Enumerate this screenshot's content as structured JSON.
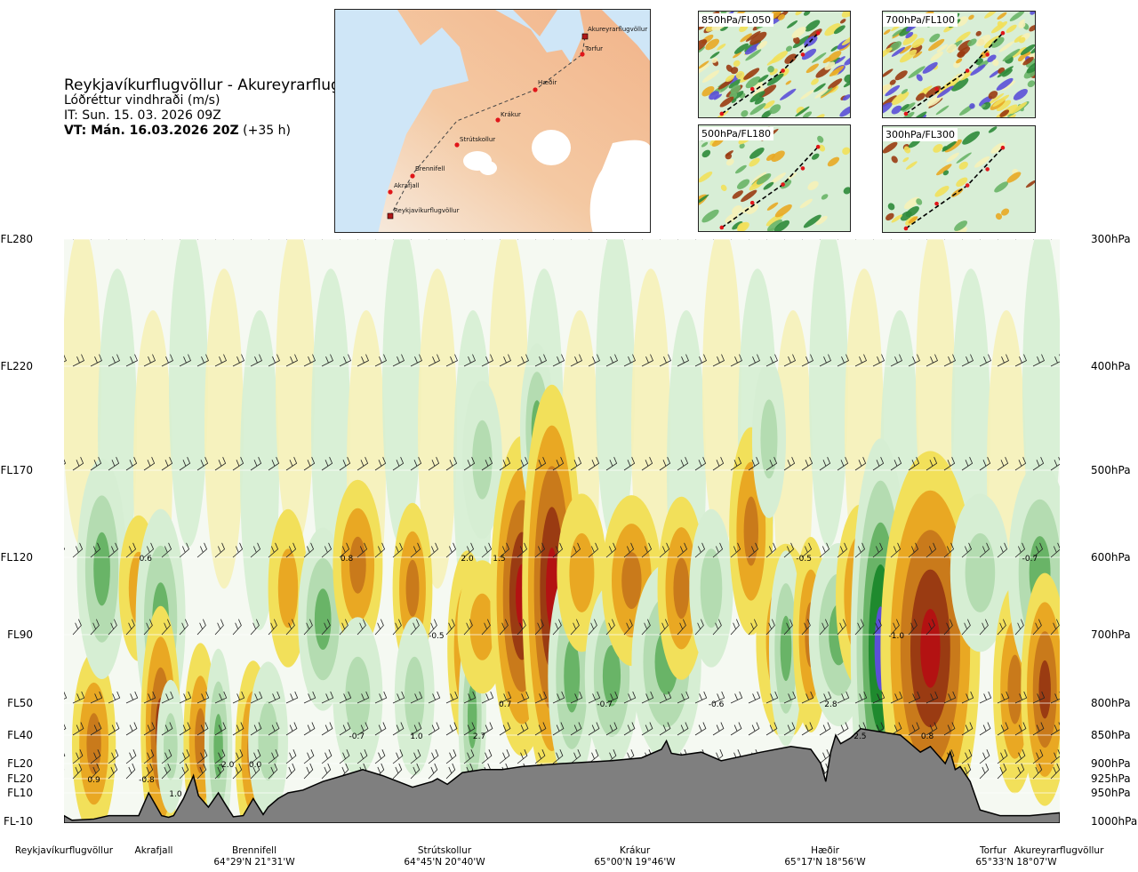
{
  "header": {
    "title": "Reykjavíkurflugvöllur - Akureyrarflugvöllur",
    "subtitle": "Lóðréttur vindhraði (m/s)",
    "issue_time": "IT: Sun. 15. 03. 2026 09Z",
    "valid_label": "VT: Mán. 16.03.2026 20Z",
    "lead_time": "(+35 h)"
  },
  "route_map": {
    "waypoints": [
      {
        "name": "Akureyrarflugvöllur"
      },
      {
        "name": "Torfur"
      },
      {
        "name": "Hæðir"
      },
      {
        "name": "Krákur"
      },
      {
        "name": "Strútskollur"
      },
      {
        "name": "Brennifell"
      },
      {
        "name": "Akrafjall"
      },
      {
        "name": "Reykjavíkurflugvöllur"
      }
    ]
  },
  "level_maps": [
    {
      "label": "850hPa/FL050"
    },
    {
      "label": "700hPa/FL100"
    },
    {
      "label": "500hPa/FL180"
    },
    {
      "label": "300hPa/FL300"
    }
  ],
  "chart_data": {
    "type": "heatmap",
    "title": "Reykjavíkurflugvöllur - Akureyrarflugvöllur",
    "variable": "Lóðréttur vindhraði (m/s)",
    "x_locations": [
      {
        "name": "Reykjavíkurflugvöllur",
        "coord": ""
      },
      {
        "name": "Akrafjall",
        "coord": ""
      },
      {
        "name": "Brennifell",
        "coord": "64°29'N 21°31'W"
      },
      {
        "name": "Strútskollur",
        "coord": "64°45'N 20°40'W"
      },
      {
        "name": "Krákur",
        "coord": "65°00'N 19°46'W"
      },
      {
        "name": "Hæðir",
        "coord": "65°17'N 18°56'W"
      },
      {
        "name": "Torfur",
        "coord": "65°33'N 18°07'W"
      },
      {
        "name": "Akureyrarflugvöllur",
        "coord": ""
      }
    ],
    "left_axis_labels": [
      "FL280",
      "FL220",
      "FL170",
      "FL120",
      "FL90",
      "FL50",
      "FL40",
      "FL20",
      "FL20",
      "FL10",
      "FL-10"
    ],
    "right_axis_labels": [
      "300hPa",
      "400hPa",
      "500hPa",
      "600hPa",
      "700hPa",
      "800hPa",
      "850hPa",
      "900hPa",
      "925hPa",
      "950hPa",
      "1000hPa"
    ],
    "pressure_levels": [
      300,
      400,
      500,
      600,
      700,
      800,
      850,
      900,
      925,
      950,
      1000
    ],
    "color_scale": {
      "down": [
        "#5b4fd8",
        "#1f8a2e",
        "#69b467",
        "#b4dcb1",
        "#d6eed3"
      ],
      "neutral": "#f5f9f2",
      "up": [
        "#f6f1b8",
        "#f2e05a",
        "#e9a823",
        "#c97a1b",
        "#9a3b12",
        "#b31212"
      ]
    },
    "cells": [
      {
        "x": 0.03,
        "p": 865,
        "w": 0.022,
        "v": 0.9
      },
      {
        "x": 0.038,
        "p": 615,
        "w": 0.025,
        "v": 1.2
      },
      {
        "x": 0.075,
        "p": 640,
        "w": 0.02,
        "v": 0.6
      },
      {
        "x": 0.097,
        "p": 680,
        "w": 0.025,
        "v": 1.2
      },
      {
        "x": 0.097,
        "p": 840,
        "w": 0.02,
        "v": 1.4
      },
      {
        "x": 0.107,
        "p": 870,
        "w": 0.014,
        "v": 0.5
      },
      {
        "x": 0.137,
        "p": 860,
        "w": 0.017,
        "v": 1.0
      },
      {
        "x": 0.155,
        "p": 870,
        "w": 0.014,
        "v": 1.0
      },
      {
        "x": 0.19,
        "p": 880,
        "w": 0.018,
        "v": 0.9
      },
      {
        "x": 0.205,
        "p": 860,
        "w": 0.02,
        "v": 0.7
      },
      {
        "x": 0.225,
        "p": 640,
        "w": 0.02,
        "v": 0.7
      },
      {
        "x": 0.26,
        "p": 680,
        "w": 0.025,
        "v": 0.9
      },
      {
        "x": 0.295,
        "p": 610,
        "w": 0.025,
        "v": 0.8
      },
      {
        "x": 0.295,
        "p": 790,
        "w": 0.025,
        "v": 0.7
      },
      {
        "x": 0.35,
        "p": 640,
        "w": 0.02,
        "v": 0.8
      },
      {
        "x": 0.352,
        "p": 790,
        "w": 0.02,
        "v": 0.7
      },
      {
        "x": 0.405,
        "p": 720,
        "w": 0.02,
        "v": 1.0
      },
      {
        "x": 0.41,
        "p": 820,
        "w": 0.014,
        "v": 1.0
      },
      {
        "x": 0.42,
        "p": 690,
        "w": 0.025,
        "v": 0.5
      },
      {
        "x": 0.42,
        "p": 490,
        "w": 0.02,
        "v": 0.7
      },
      {
        "x": 0.46,
        "p": 650,
        "w": 0.032,
        "v": 2.0
      },
      {
        "x": 0.475,
        "p": 460,
        "w": 0.017,
        "v": 0.8
      },
      {
        "x": 0.49,
        "p": 640,
        "w": 0.03,
        "v": 2.7
      },
      {
        "x": 0.51,
        "p": 760,
        "w": 0.024,
        "v": 1.2
      },
      {
        "x": 0.52,
        "p": 620,
        "w": 0.025,
        "v": 0.7
      },
      {
        "x": 0.55,
        "p": 760,
        "w": 0.027,
        "v": 0.9
      },
      {
        "x": 0.57,
        "p": 630,
        "w": 0.03,
        "v": 0.8
      },
      {
        "x": 0.605,
        "p": 740,
        "w": 0.035,
        "v": 1.0
      },
      {
        "x": 0.62,
        "p": 640,
        "w": 0.024,
        "v": 0.9
      },
      {
        "x": 0.65,
        "p": 640,
        "w": 0.022,
        "v": 0.7
      },
      {
        "x": 0.69,
        "p": 570,
        "w": 0.022,
        "v": 1.1
      },
      {
        "x": 0.708,
        "p": 470,
        "w": 0.017,
        "v": 0.7
      },
      {
        "x": 0.725,
        "p": 710,
        "w": 0.03,
        "v": 1.0
      },
      {
        "x": 0.725,
        "p": 720,
        "w": 0.017,
        "v": 1.0
      },
      {
        "x": 0.75,
        "p": 700,
        "w": 0.018,
        "v": 1.0
      },
      {
        "x": 0.778,
        "p": 700,
        "w": 0.03,
        "v": 0.9
      },
      {
        "x": 0.8,
        "p": 650,
        "w": 0.025,
        "v": 0.9
      },
      {
        "x": 0.82,
        "p": 720,
        "w": 0.03,
        "v": 2.8
      },
      {
        "x": 0.87,
        "p": 720,
        "w": 0.05,
        "v": 2.6
      },
      {
        "x": 0.92,
        "p": 620,
        "w": 0.03,
        "v": 0.7
      },
      {
        "x": 0.955,
        "p": 780,
        "w": 0.022,
        "v": 1.1
      },
      {
        "x": 0.98,
        "p": 620,
        "w": 0.032,
        "v": 1.2
      },
      {
        "x": 0.985,
        "p": 780,
        "w": 0.024,
        "v": 1.3
      }
    ],
    "contour_labels": [
      {
        "text": "0.6",
        "x": 0.082,
        "p": 600
      },
      {
        "text": "0.8",
        "x": 0.284,
        "p": 600
      },
      {
        "text": "2.0",
        "x": 0.405,
        "p": 600
      },
      {
        "text": "1.5",
        "x": 0.437,
        "p": 600
      },
      {
        "text": "-0.5",
        "x": 0.743,
        "p": 600
      },
      {
        "text": "-0.7",
        "x": 0.97,
        "p": 600
      },
      {
        "text": "-0.5",
        "x": 0.374,
        "p": 700
      },
      {
        "text": "-1.0",
        "x": 0.836,
        "p": 700
      },
      {
        "text": "0.7",
        "x": 0.443,
        "p": 800
      },
      {
        "text": "-0.7",
        "x": 0.543,
        "p": 800
      },
      {
        "text": "-0.6",
        "x": 0.655,
        "p": 800
      },
      {
        "text": "2.8",
        "x": 0.77,
        "p": 800
      },
      {
        "text": "-0.7",
        "x": 0.294,
        "p": 850
      },
      {
        "text": "1.0",
        "x": 0.354,
        "p": 850
      },
      {
        "text": "2.7",
        "x": 0.417,
        "p": 850
      },
      {
        "text": "-2.5",
        "x": 0.798,
        "p": 850
      },
      {
        "text": "0.8",
        "x": 0.867,
        "p": 850
      },
      {
        "text": "-2.0",
        "x": 0.163,
        "p": 900
      },
      {
        "text": "0.0",
        "x": 0.192,
        "p": 900
      },
      {
        "text": "0.9",
        "x": 0.03,
        "p": 925
      },
      {
        "text": "-0.8",
        "x": 0.083,
        "p": 925
      },
      {
        "text": "1.0",
        "x": 0.112,
        "p": 950
      }
    ]
  }
}
